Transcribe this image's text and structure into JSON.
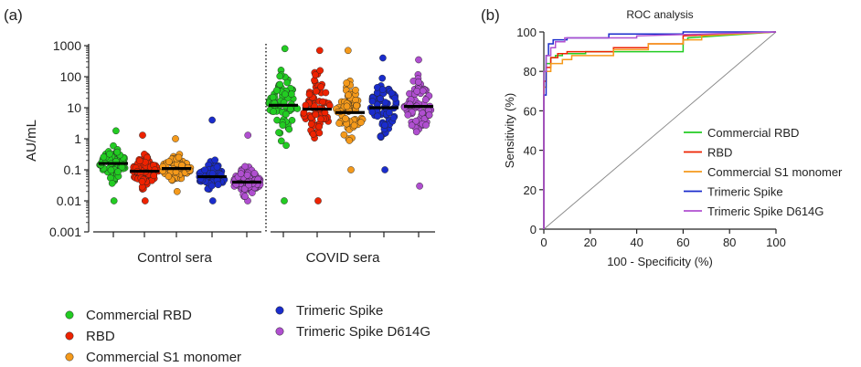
{
  "chart_data": [
    {
      "type": "scatter",
      "panel_label": "(a)",
      "ylabel": "AU/mL",
      "yscale": "log",
      "ylim": [
        0.001,
        1000
      ],
      "yticks": [
        "0.001",
        "0.01",
        "0.1",
        "1",
        "10",
        "100",
        "1000"
      ],
      "groups": [
        {
          "label": "Control sera",
          "series": [
            {
              "name": "Commercial RBD",
              "median": 0.16,
              "min": 0.01,
              "max": 1.8,
              "color": "#22cc22"
            },
            {
              "name": "RBD",
              "median": 0.09,
              "min": 0.01,
              "max": 1.3,
              "color": "#ee2200"
            },
            {
              "name": "Commercial S1 monomer",
              "median": 0.11,
              "min": 0.02,
              "max": 1.0,
              "color": "#f59a1b"
            },
            {
              "name": "Trimeric Spike",
              "median": 0.06,
              "min": 0.01,
              "max": 4.0,
              "color": "#1a2ccc"
            },
            {
              "name": "Trimeric Spike D614G",
              "median": 0.04,
              "min": 0.01,
              "max": 1.3,
              "color": "#b04fd0"
            }
          ]
        },
        {
          "label": "COVID sera",
          "series": [
            {
              "name": "Commercial RBD",
              "median": 12,
              "min": 0.01,
              "max": 800,
              "color": "#22cc22"
            },
            {
              "name": "RBD",
              "median": 9,
              "min": 0.01,
              "max": 700,
              "color": "#ee2200"
            },
            {
              "name": "Commercial S1 monomer",
              "median": 7,
              "min": 0.1,
              "max": 700,
              "color": "#f59a1b"
            },
            {
              "name": "Trimeric Spike",
              "median": 10,
              "min": 0.1,
              "max": 400,
              "color": "#1a2ccc"
            },
            {
              "name": "Trimeric Spike D614G",
              "median": 11,
              "min": 0.03,
              "max": 350,
              "color": "#b04fd0"
            }
          ]
        }
      ],
      "legend": [
        {
          "name": "Commercial RBD",
          "color": "#22cc22"
        },
        {
          "name": "RBD",
          "color": "#ee2200"
        },
        {
          "name": "Commercial S1 monomer",
          "color": "#f59a1b"
        },
        {
          "name": "Trimeric Spike",
          "color": "#1a2ccc"
        },
        {
          "name": "Trimeric Spike D614G",
          "color": "#b04fd0"
        }
      ]
    },
    {
      "type": "line",
      "panel_label": "(b)",
      "title": "ROC analysis",
      "xlabel": "100 - Specificity (%)",
      "ylabel": "Sensitivity (%)",
      "xlim": [
        0,
        100
      ],
      "ylim": [
        0,
        100
      ],
      "xticks": [
        "0",
        "20",
        "40",
        "60",
        "80",
        "100"
      ],
      "yticks": [
        "0",
        "20",
        "40",
        "60",
        "80",
        "100"
      ],
      "reference_line": {
        "x": [
          0,
          100
        ],
        "y": [
          0,
          100
        ],
        "color": "#888888"
      },
      "series": [
        {
          "name": "Commercial RBD",
          "color": "#22cc22",
          "x": [
            0,
            0,
            1,
            1,
            3,
            3,
            5,
            5,
            8,
            8,
            18,
            18,
            60,
            60,
            62,
            62,
            100
          ],
          "y": [
            0,
            80,
            80,
            84,
            84,
            87,
            87,
            88,
            88,
            89,
            89,
            90,
            90,
            96,
            96,
            97,
            100
          ]
        },
        {
          "name": "RBD",
          "color": "#ee2200",
          "x": [
            0,
            0,
            1,
            1,
            3,
            3,
            6,
            6,
            10,
            10,
            30,
            30,
            45,
            45,
            60,
            60,
            100
          ],
          "y": [
            0,
            75,
            75,
            82,
            82,
            87,
            87,
            89,
            89,
            90,
            90,
            92,
            92,
            94,
            94,
            98,
            100
          ]
        },
        {
          "name": "Commercial S1 monomer",
          "color": "#f59a1b",
          "x": [
            0,
            0,
            1,
            1,
            3,
            3,
            8,
            8,
            12,
            12,
            30,
            30,
            45,
            45,
            60,
            60,
            68,
            68,
            100
          ],
          "y": [
            0,
            72,
            72,
            80,
            80,
            84,
            84,
            86,
            86,
            88,
            88,
            91,
            91,
            94,
            94,
            96,
            96,
            98,
            100
          ]
        },
        {
          "name": "Trimeric Spike",
          "color": "#1a2ccc",
          "x": [
            0,
            0,
            1,
            1,
            2,
            2,
            4,
            4,
            10,
            10,
            28,
            28,
            60,
            60,
            100
          ],
          "y": [
            0,
            68,
            68,
            88,
            88,
            94,
            94,
            96,
            96,
            97,
            97,
            99,
            99,
            100,
            100
          ]
        },
        {
          "name": "Trimeric Spike D614G",
          "color": "#b04fd0",
          "x": [
            0,
            0,
            1,
            1,
            3,
            3,
            5,
            5,
            9,
            9,
            40,
            40,
            100
          ],
          "y": [
            0,
            80,
            80,
            88,
            88,
            92,
            92,
            95,
            95,
            97,
            97,
            98,
            100
          ]
        }
      ]
    }
  ]
}
